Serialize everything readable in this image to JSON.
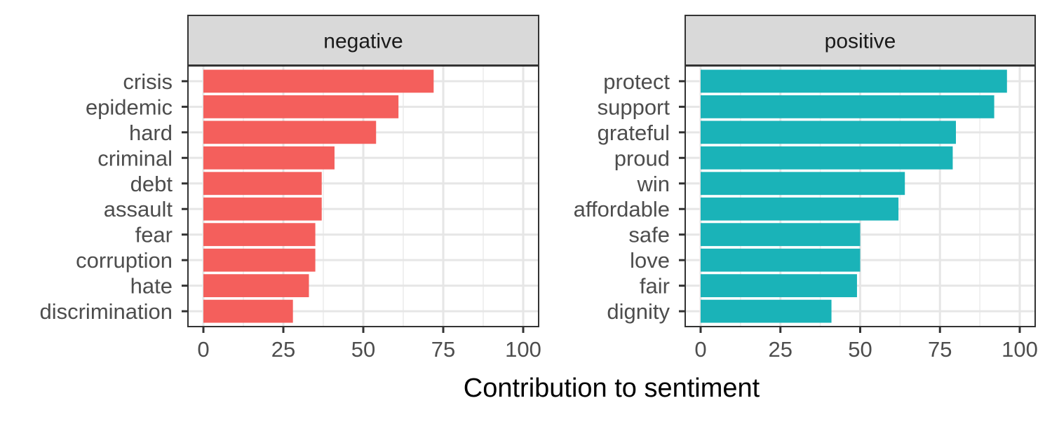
{
  "chart_data": {
    "type": "bar",
    "orientation": "horizontal",
    "xlabel": "Contribution to sentiment",
    "ylabel": "",
    "xlim": [
      0,
      100
    ],
    "x_ticks": [
      0,
      25,
      50,
      75,
      100
    ],
    "grid": true,
    "legend": "none",
    "panels": [
      {
        "title": "negative",
        "color": "#F45F5C",
        "categories": [
          "crisis",
          "epidemic",
          "hard",
          "criminal",
          "debt",
          "assault",
          "fear",
          "corruption",
          "hate",
          "discrimination"
        ],
        "values": [
          72,
          61,
          54,
          41,
          37,
          37,
          35,
          35,
          33,
          28
        ]
      },
      {
        "title": "positive",
        "color": "#1AB3B8",
        "categories": [
          "protect",
          "support",
          "grateful",
          "proud",
          "win",
          "affordable",
          "safe",
          "love",
          "fair",
          "dignity"
        ],
        "values": [
          96,
          92,
          80,
          79,
          64,
          62,
          50,
          50,
          49,
          41
        ]
      }
    ]
  }
}
